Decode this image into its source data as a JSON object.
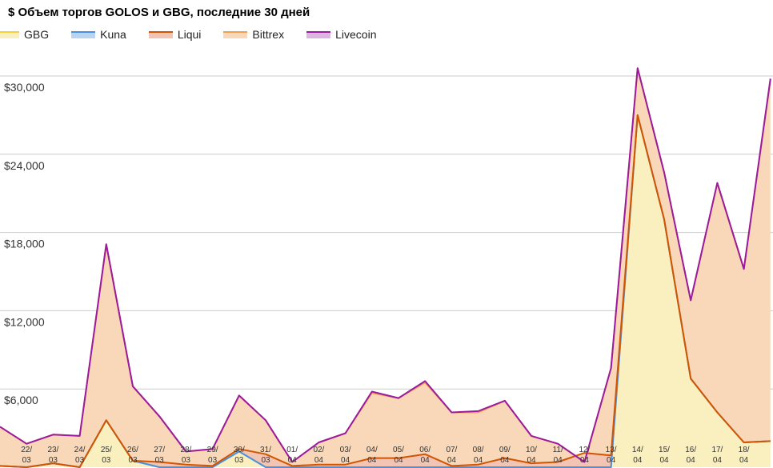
{
  "chart_data": {
    "type": "area",
    "stacked": true,
    "title": "$ Объем торгов GOLOS и GBG, последние 30 дней",
    "xlabel": "",
    "ylabel": "",
    "ylim": [
      0,
      36000
    ],
    "y_ticks": [
      "$6,000",
      "$12,000",
      "$18,000",
      "$24,000",
      "$30,000"
    ],
    "y_tick_values": [
      6000,
      12000,
      18000,
      24000,
      30000
    ],
    "grid": true,
    "legend_position": "top-left",
    "categories": [
      "21/03",
      "22/03",
      "23/03",
      "24/03",
      "25/03",
      "26/03",
      "27/03",
      "28/03",
      "29/03",
      "30/03",
      "31/03",
      "01/04",
      "02/04",
      "03/04",
      "04/04",
      "05/04",
      "06/04",
      "07/04",
      "08/04",
      "09/04",
      "10/04",
      "11/04",
      "12/04",
      "13/04",
      "14/04",
      "15/04",
      "16/04",
      "17/04",
      "18/04",
      "19/04"
    ],
    "x_labels": [
      [
        "",
        ""
      ],
      [
        "22/",
        "03"
      ],
      [
        "23/",
        "03"
      ],
      [
        "24/",
        "03"
      ],
      [
        "25/",
        "03"
      ],
      [
        "26/",
        "03"
      ],
      [
        "27/",
        "03"
      ],
      [
        "28/",
        "03"
      ],
      [
        "29/",
        "03"
      ],
      [
        "30/",
        "03"
      ],
      [
        "31/",
        "03"
      ],
      [
        "01/",
        "04"
      ],
      [
        "02/",
        "04"
      ],
      [
        "03/",
        "04"
      ],
      [
        "04/",
        "04"
      ],
      [
        "05/",
        "04"
      ],
      [
        "06/",
        "04"
      ],
      [
        "07/",
        "04"
      ],
      [
        "08/",
        "04"
      ],
      [
        "09/",
        "04"
      ],
      [
        "10/",
        "04"
      ],
      [
        "11/",
        "04"
      ],
      [
        "12/",
        "04"
      ],
      [
        "13/",
        "04"
      ],
      [
        "14/",
        "04"
      ],
      [
        "15/",
        "04"
      ],
      [
        "16/",
        "04"
      ],
      [
        "17/",
        "04"
      ],
      [
        "18/",
        "04"
      ],
      [
        "",
        ""
      ]
    ],
    "series": [
      {
        "name": "GBG",
        "color": "#f4d03f",
        "fill": "#f9efbf",
        "values": [
          100,
          0,
          300,
          0,
          3600,
          500,
          0,
          0,
          0,
          1200,
          0,
          0,
          0,
          0,
          0,
          0,
          0,
          0,
          0,
          0,
          0,
          0,
          0,
          0,
          27000,
          19000,
          6800,
          4200,
          1900,
          2000
        ]
      },
      {
        "name": "Kuna",
        "color": "#4a90e2",
        "fill": "#b8d4f1",
        "values": [
          0,
          0,
          0,
          0,
          0,
          0,
          0,
          0,
          0,
          0,
          0,
          0,
          0,
          0,
          0,
          0,
          0,
          0,
          0,
          0,
          0,
          0,
          0,
          0,
          0,
          0,
          0,
          0,
          0,
          0
        ]
      },
      {
        "name": "Liqui",
        "color": "#d35400",
        "fill": "#f2c4b4",
        "values": [
          0,
          0,
          0,
          0,
          0,
          0,
          400,
          200,
          100,
          200,
          1000,
          100,
          200,
          200,
          700,
          700,
          1000,
          100,
          200,
          700,
          300,
          400,
          1100,
          900,
          0,
          0,
          0,
          0,
          0,
          0
        ]
      },
      {
        "name": "Bittrex",
        "color": "#f0a050",
        "fill": "#f8d8b8",
        "values": [
          3000,
          1800,
          2200,
          2400,
          13500,
          5700,
          3500,
          1000,
          1300,
          4100,
          2600,
          300,
          1700,
          2400,
          5000,
          4600,
          5500,
          4100,
          4000,
          4400,
          2100,
          1400,
          -700,
          6700,
          3600,
          3600,
          6000,
          17600,
          13300,
          27700
        ]
      },
      {
        "name": "Livecoin",
        "color": "#9b1aa0",
        "fill": "#dcb5e0",
        "values": [
          0,
          0,
          0,
          0,
          0,
          0,
          0,
          0,
          0,
          0,
          0,
          0,
          0,
          0,
          100,
          0,
          100,
          0,
          100,
          0,
          0,
          0,
          0,
          0,
          0,
          0,
          0,
          0,
          0,
          100
        ]
      }
    ]
  }
}
